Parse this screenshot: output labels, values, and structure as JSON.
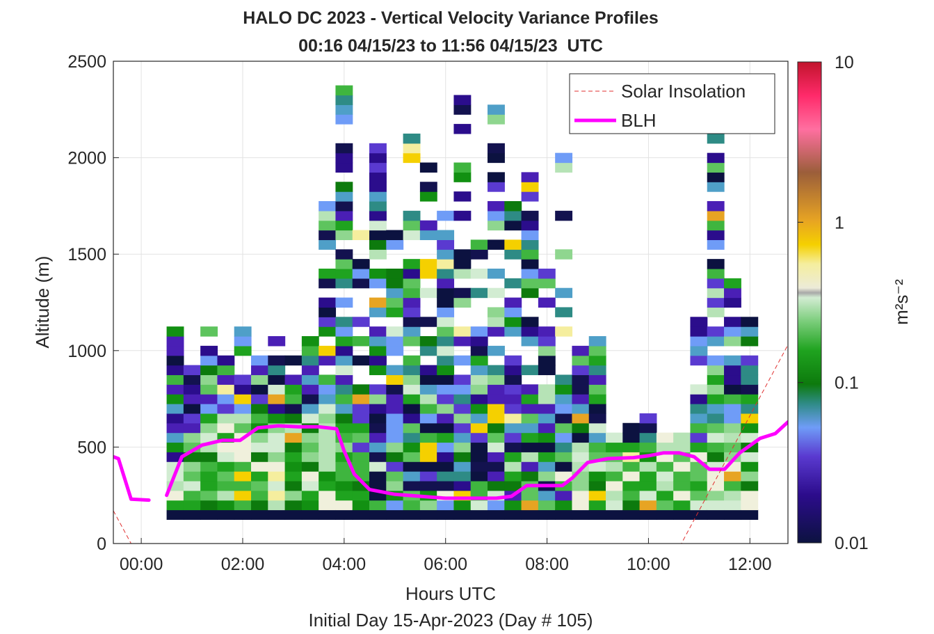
{
  "chart_data": {
    "type": "heatmap",
    "title": "HALO DC 2023 - Vertical Velocity Variance Profiles",
    "subtitle": "00:16 04/15/23 to 11:56 04/15/23  UTC",
    "xlabel": "Hours UTC",
    "xlabel2": "Initial Day 15-Apr-2023 (Day # 105)",
    "ylabel": "Altitude (m)",
    "colorbar_label": "m²s⁻²",
    "colorbar_scale": "log",
    "colorbar_range": [
      0.01,
      10
    ],
    "colorbar_ticks": [
      "0.01",
      "0.1",
      "1",
      "10"
    ],
    "xlim": [
      -0.55,
      12.75
    ],
    "ylim": [
      0,
      2500
    ],
    "x_ticks": [
      "00:00",
      "02:00",
      "04:00",
      "06:00",
      "08:00",
      "10:00",
      "12:00"
    ],
    "x_tick_values": [
      0,
      2,
      4,
      6,
      8,
      10,
      12
    ],
    "y_ticks": [
      "0",
      "500",
      "1000",
      "1500",
      "2000",
      "2500"
    ],
    "y_tick_values": [
      0,
      500,
      1000,
      1500,
      2000,
      2500
    ],
    "grid": true,
    "legend_placement": "top-right",
    "legend": [
      "Solar Insolation",
      "BLH"
    ],
    "series": [
      {
        "name": "BLH",
        "color": "#ff00ff",
        "style": "solid",
        "segments": [
          [
            [
              -0.55,
              450
            ],
            [
              -0.45,
              440
            ],
            [
              -0.2,
              230
            ],
            [
              0.15,
              225
            ]
          ],
          [
            [
              0.5,
              250
            ],
            [
              0.8,
              450
            ],
            [
              1.2,
              510
            ],
            [
              1.6,
              535
            ],
            [
              1.95,
              535
            ],
            [
              2.3,
              600
            ],
            [
              2.7,
              610
            ],
            [
              3.1,
              605
            ],
            [
              3.5,
              605
            ],
            [
              3.85,
              595
            ],
            [
              4.0,
              480
            ],
            [
              4.2,
              360
            ],
            [
              4.5,
              280
            ],
            [
              5.0,
              255
            ],
            [
              5.5,
              245
            ],
            [
              6.0,
              235
            ],
            [
              6.5,
              235
            ],
            [
              7.0,
              235
            ],
            [
              7.3,
              245
            ],
            [
              7.6,
              300
            ],
            [
              8.0,
              300
            ],
            [
              8.3,
              300
            ],
            [
              8.5,
              340
            ],
            [
              8.8,
              420
            ],
            [
              9.2,
              440
            ],
            [
              9.7,
              445
            ],
            [
              10.0,
              455
            ],
            [
              10.3,
              470
            ],
            [
              10.6,
              470
            ],
            [
              10.9,
              450
            ],
            [
              11.2,
              385
            ],
            [
              11.5,
              385
            ],
            [
              11.8,
              470
            ],
            [
              12.2,
              545
            ],
            [
              12.5,
              570
            ],
            [
              12.75,
              630
            ]
          ]
        ]
      },
      {
        "name": "Solar Insolation",
        "color": "#e03030",
        "style": "dashed",
        "points": [
          [
            -0.55,
            170
          ],
          [
            -0.2,
            0
          ],
          [
            10.65,
            0
          ],
          [
            12.75,
            1030
          ]
        ]
      }
    ],
    "heatmap": {
      "x_start": 0.5,
      "x_step": 0.333,
      "y_start": 125,
      "y_step": 50,
      "first_row_altitude": 125,
      "note_bottom_row": "near-constant dark band at lowest gate across 0.5–12.0 h",
      "columns_value_range_summary": "values span 0.01–1 m2s-2; higher variance (green, ~0.05–0.3) in boundary layer below ~600 m, mixed low values (purple/navy, ~0.01–0.03) in upper sparse columns up to 2500 m"
    },
    "colors": {
      "blh": "#ff00ff",
      "solar": "#e03030",
      "axis": "#262626",
      "grid": "#dcdcdc"
    }
  }
}
